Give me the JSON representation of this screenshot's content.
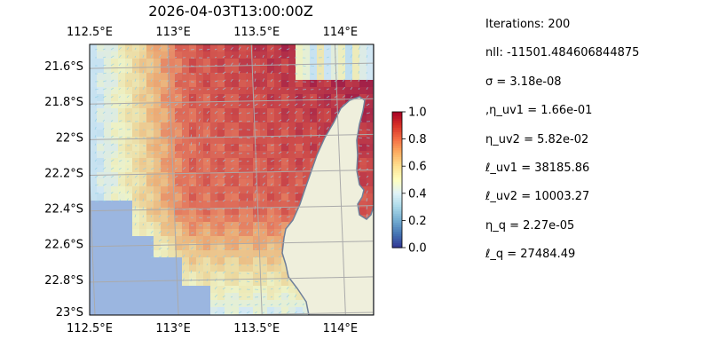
{
  "figure": {
    "title": "2026-04-03T13:00:00Z"
  },
  "map": {
    "lon_range": [
      112.5,
      114.2
    ],
    "lat_range": [
      -23.0,
      -21.48
    ],
    "lon_ticks": [
      {
        "value": 112.5,
        "label": "112.5°E"
      },
      {
        "value": 113.0,
        "label": "113°E"
      },
      {
        "value": 113.5,
        "label": "113.5°E"
      },
      {
        "value": 114.0,
        "label": "114°E"
      }
    ],
    "lat_ticks": [
      {
        "value": -21.6,
        "label": "21.6°S"
      },
      {
        "value": -21.8,
        "label": "21.8°S"
      },
      {
        "value": -22.0,
        "label": "22°S"
      },
      {
        "value": -22.2,
        "label": "22.2°S"
      },
      {
        "value": -22.4,
        "label": "22.4°S"
      },
      {
        "value": -22.6,
        "label": "22.6°S"
      },
      {
        "value": -22.8,
        "label": "22.8°S"
      },
      {
        "value": -23.0,
        "label": "23°S"
      }
    ],
    "colors": {
      "ocean": "#9bb6e0",
      "land": "#efefdc",
      "coast": "#6e7f9a",
      "grid": "#aaaaaa",
      "arrows": "#8fd0e8"
    }
  },
  "colorbar": {
    "range": [
      0.0,
      1.0
    ],
    "ticks": [
      {
        "value": 1.0,
        "label": "1.0"
      },
      {
        "value": 0.8,
        "label": "0.8"
      },
      {
        "value": 0.6,
        "label": "0.6"
      },
      {
        "value": 0.4,
        "label": "0.4"
      },
      {
        "value": 0.2,
        "label": "0.2"
      },
      {
        "value": 0.0,
        "label": "0.0"
      }
    ],
    "colormap": [
      "#313695",
      "#4575b4",
      "#74add1",
      "#abd9e9",
      "#e0f3f8",
      "#ffffbf",
      "#fee090",
      "#fdae61",
      "#f46d43",
      "#d73027",
      "#a50026"
    ]
  },
  "params": [
    "Iterations: 200",
    "nll: -11501.484606844875",
    "σ = 3.18e-08",
    ",η_uv1 = 1.66e-01",
    "η_uv2 = 5.82e-02",
    "ℓ_uv1 = 38185.86",
    "ℓ_uv2 = 10003.27",
    "η_q = 2.27e-05",
    "ℓ_q = 27484.49"
  ]
}
